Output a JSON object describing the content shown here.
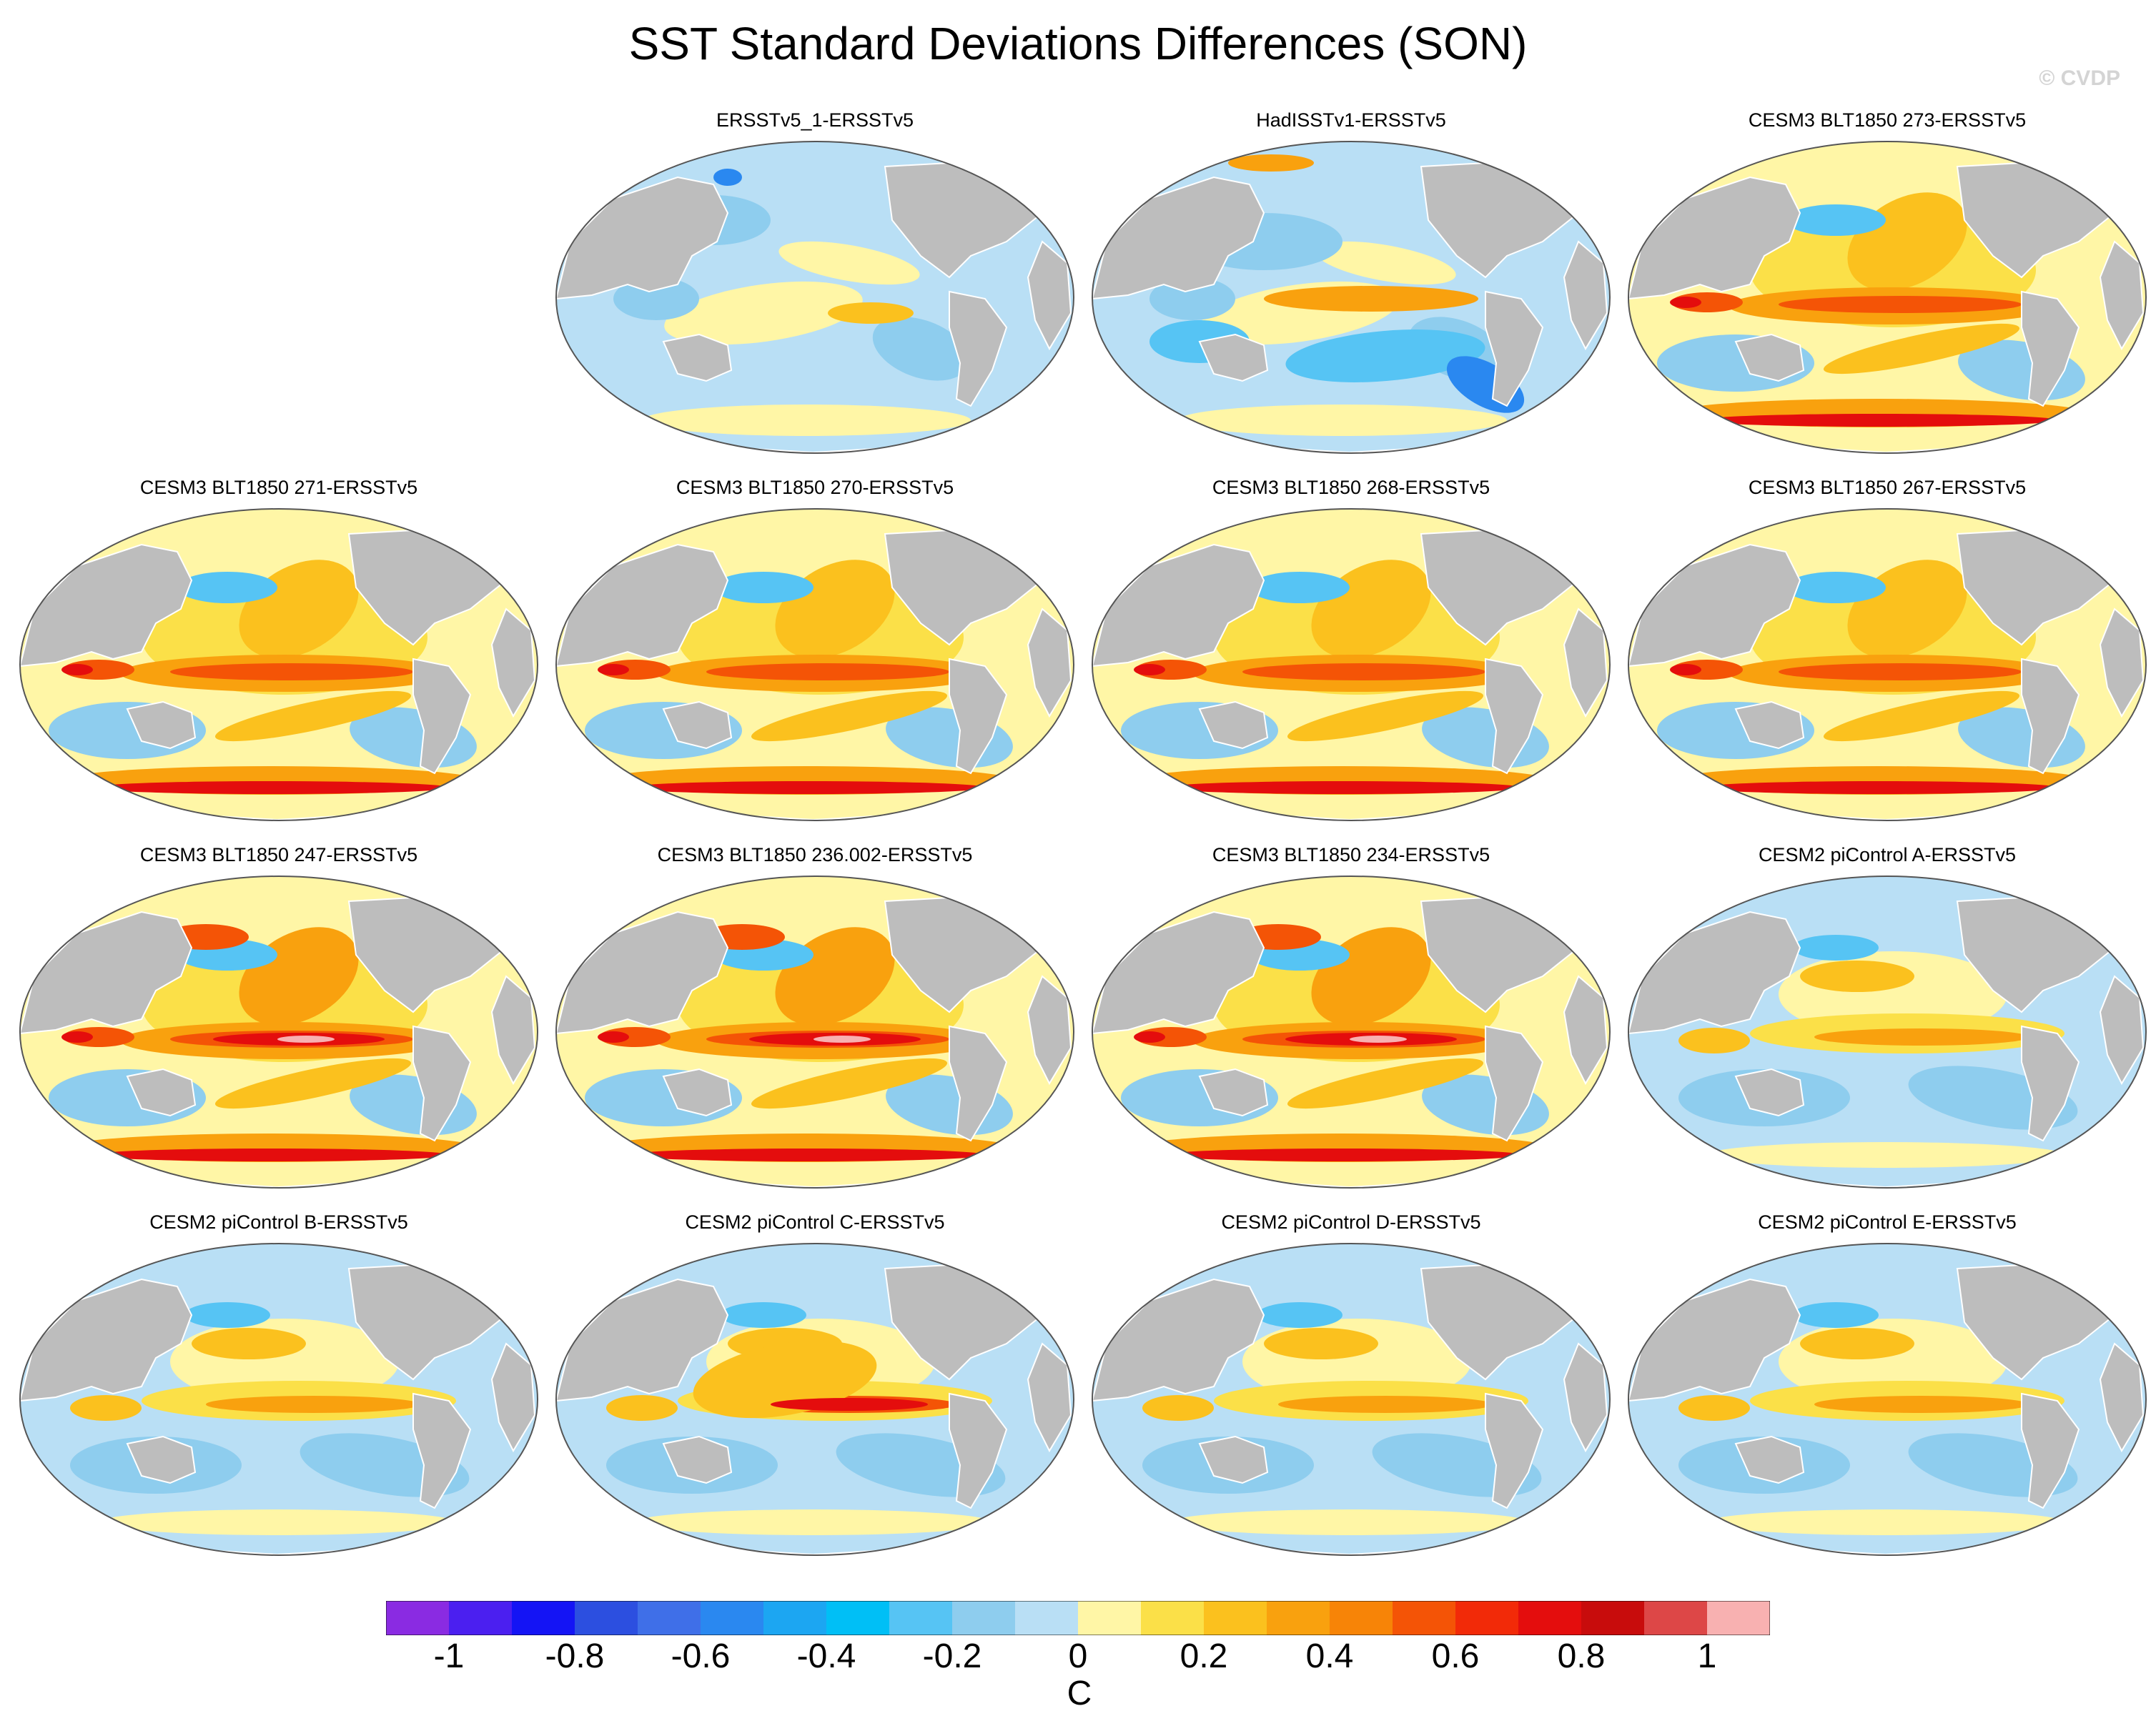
{
  "title": "SST Standard Deviations Differences (SON)",
  "watermark": "© CVDP",
  "units": "C",
  "colorbar": {
    "labels": [
      "-1",
      "-0.8",
      "-0.6",
      "-0.4",
      "-0.2",
      "0",
      "0.2",
      "0.4",
      "0.6",
      "0.8",
      "1"
    ],
    "colors": [
      "#8a2be2",
      "#4b1ff0",
      "#1414f5",
      "#2c4fe0",
      "#3f6fe8",
      "#2a88f0",
      "#1ca6f2",
      "#00bff6",
      "#56c4f4",
      "#8ecdee",
      "#b9dff5",
      "#fff6a6",
      "#fbe048",
      "#fbc11e",
      "#f9a10e",
      "#f78407",
      "#f45406",
      "#f22a08",
      "#e40d0d",
      "#c80c0c",
      "#dd4747",
      "#f8b1b1"
    ]
  },
  "colors": {
    "land": "#bdbdbd",
    "coast": "#ffffff",
    "ocean_zero": "#fff6a6"
  },
  "panels": [
    {
      "title": "ERSSTv5_1-ERSSTv5",
      "pattern": "obs-light"
    },
    {
      "title": "HadISSTv1-ERSSTv5",
      "pattern": "obs-blue"
    },
    {
      "title": "CESM3 BLT1850 273-ERSSTv5",
      "pattern": "model-warm"
    },
    {
      "title": "CESM3 BLT1850 271-ERSSTv5",
      "pattern": "model-warm"
    },
    {
      "title": "CESM3 BLT1850 270-ERSSTv5",
      "pattern": "model-warm"
    },
    {
      "title": "CESM3 BLT1850 268-ERSSTv5",
      "pattern": "model-warm"
    },
    {
      "title": "CESM3 BLT1850 267-ERSSTv5",
      "pattern": "model-warm"
    },
    {
      "title": "CESM3 BLT1850 247-ERSSTv5",
      "pattern": "model-strong"
    },
    {
      "title": "CESM3 BLT1850 236.002-ERSSTv5",
      "pattern": "model-strong"
    },
    {
      "title": "CESM3 BLT1850 234-ERSSTv5",
      "pattern": "model-strong"
    },
    {
      "title": "CESM2 piControl A-ERSSTv5",
      "pattern": "cesm2"
    },
    {
      "title": "CESM2 piControl B-ERSSTv5",
      "pattern": "cesm2"
    },
    {
      "title": "CESM2 piControl C-ERSSTv5",
      "pattern": "cesm2-warm"
    },
    {
      "title": "CESM2 piControl D-ERSSTv5",
      "pattern": "cesm2"
    },
    {
      "title": "CESM2 piControl E-ERSSTv5",
      "pattern": "cesm2"
    }
  ]
}
